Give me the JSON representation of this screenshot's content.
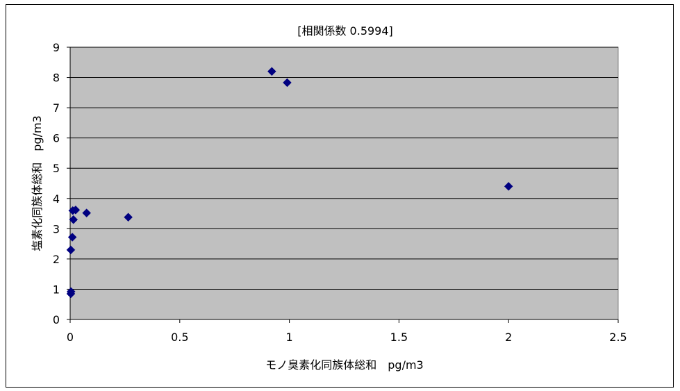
{
  "chart_data": {
    "type": "scatter",
    "title": "[相関係数 0.5994]",
    "xlabel": "モノ臭素化同族体総和　pg/m3",
    "ylabel": "塩素化同族体総和　pg/m3",
    "xlim": [
      0,
      2.5
    ],
    "ylim": [
      0,
      9
    ],
    "xticks": [
      "0",
      "0.5",
      "1",
      "1.5",
      "2",
      "2.5"
    ],
    "yticks": [
      "0",
      "1",
      "2",
      "3",
      "4",
      "5",
      "6",
      "7",
      "8",
      "9"
    ],
    "grid": "horizontal",
    "legend": "none",
    "plot_bg_color": "#c0c0c0",
    "marker_color": "#000080",
    "marker": "diamond",
    "points": [
      {
        "x": 0.003,
        "y": 0.85
      },
      {
        "x": 0.004,
        "y": 0.92
      },
      {
        "x": 0.003,
        "y": 2.3
      },
      {
        "x": 0.01,
        "y": 2.72
      },
      {
        "x": 0.015,
        "y": 3.3
      },
      {
        "x": 0.012,
        "y": 3.6
      },
      {
        "x": 0.025,
        "y": 3.62
      },
      {
        "x": 0.075,
        "y": 3.52
      },
      {
        "x": 0.265,
        "y": 3.38
      },
      {
        "x": 0.92,
        "y": 8.2
      },
      {
        "x": 0.99,
        "y": 7.83
      },
      {
        "x": 2.0,
        "y": 4.4
      }
    ]
  }
}
